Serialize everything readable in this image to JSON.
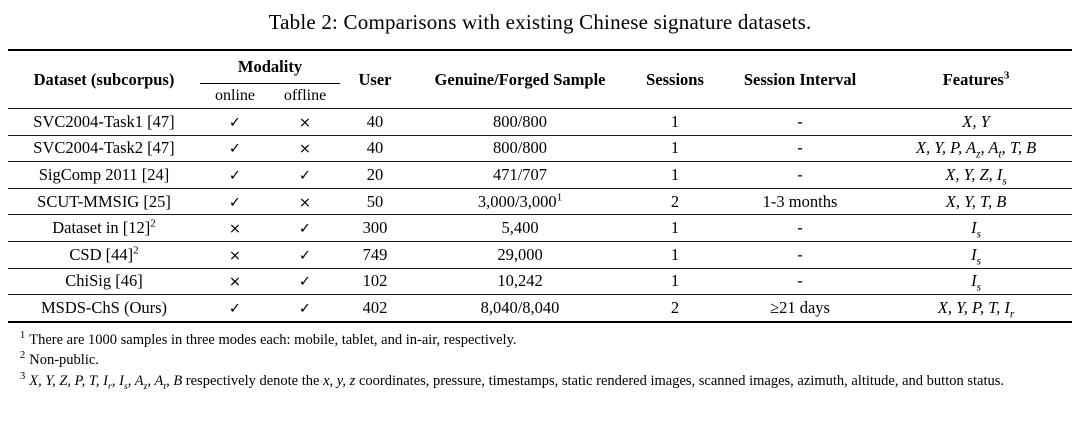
{
  "caption": "Table 2: Comparisons with existing Chinese signature datasets.",
  "table": {
    "headers": {
      "dataset": "Dataset (subcorpus)",
      "modality": "Modality",
      "online": "online",
      "offline": "offline",
      "user": "User",
      "sample": "Genuine/Forged Sample",
      "sessions": "Sessions",
      "interval": "Session Interval",
      "features": "Features",
      "features_sup": "3"
    },
    "glyphs": {
      "check": "✓",
      "cross": "×"
    },
    "rows": [
      {
        "dataset": "SVC2004-Task1 [47]",
        "dataset_sup": "",
        "online": "check",
        "offline": "cross",
        "user": "40",
        "sample": "800/800",
        "sample_sup": "",
        "sessions": "1",
        "interval": "-",
        "features": "$X, Y$"
      },
      {
        "dataset": "SVC2004-Task2 [47]",
        "dataset_sup": "",
        "online": "check",
        "offline": "cross",
        "user": "40",
        "sample": "800/800",
        "sample_sup": "",
        "sessions": "1",
        "interval": "-",
        "features": "$X, Y, P, A_z, A_t, T, B$"
      },
      {
        "dataset": "SigComp 2011 [24]",
        "dataset_sup": "",
        "online": "check",
        "offline": "check",
        "user": "20",
        "sample": "471/707",
        "sample_sup": "",
        "sessions": "1",
        "interval": "-",
        "features": "$X, Y, Z, I_s$"
      },
      {
        "dataset": "SCUT-MMSIG [25]",
        "dataset_sup": "",
        "online": "check",
        "offline": "cross",
        "user": "50",
        "sample": "3,000/3,000",
        "sample_sup": "1",
        "sessions": "2",
        "interval": "1-3 months",
        "features": "$X, Y, T, B$"
      },
      {
        "dataset": "Dataset in [12]",
        "dataset_sup": "2",
        "online": "cross",
        "offline": "check",
        "user": "300",
        "sample": "5,400",
        "sample_sup": "",
        "sessions": "1",
        "interval": "-",
        "features": "$I_s$"
      },
      {
        "dataset": "CSD [44]",
        "dataset_sup": "2",
        "online": "cross",
        "offline": "check",
        "user": "749",
        "sample": "29,000",
        "sample_sup": "",
        "sessions": "1",
        "interval": "-",
        "features": "$I_s$"
      },
      {
        "dataset": "ChiSig [46]",
        "dataset_sup": "",
        "online": "cross",
        "offline": "check",
        "user": "102",
        "sample": "10,242",
        "sample_sup": "",
        "sessions": "1",
        "interval": "-",
        "features": "$I_s$"
      },
      {
        "dataset": "MSDS-ChS (Ours)",
        "dataset_sup": "",
        "online": "check",
        "offline": "check",
        "user": "402",
        "sample": "8,040/8,040",
        "sample_sup": "",
        "sessions": "2",
        "interval": "≥21 days",
        "features": "$X, Y, P, T, I_r$"
      }
    ]
  },
  "footnotes": [
    {
      "marker": "1",
      "text": "There are 1000 samples in three modes each: mobile, tablet, and in-air, respectively."
    },
    {
      "marker": "2",
      "text": "Non-public."
    },
    {
      "marker": "3",
      "text": "$X, Y, Z, P, T, I_r, I_s, A_z, A_t, B$ respectively denote the $x, y, z$ coordinates, pressure, timestamps, static rendered images, scanned images, azimuth, altitude, and button status."
    }
  ]
}
